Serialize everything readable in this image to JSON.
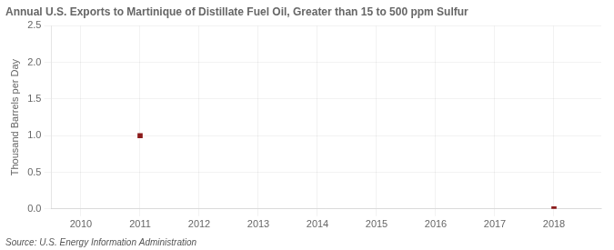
{
  "chart_data": {
    "type": "scatter",
    "title": "Annual U.S. Exports to Martinique of Distillate Fuel Oil, Greater than 15 to 500 ppm Sulfur",
    "ylabel": "Thousand Barrels per Day",
    "annotations": [
      "Source: U.S. Energy Information Administration"
    ],
    "x": [
      2011,
      2018
    ],
    "values": [
      1.0,
      0.0
    ],
    "color": "#8B1A1A",
    "marker": "square",
    "xlim": [
      2009.5,
      2018.8
    ],
    "xticks": [
      2010,
      2011,
      2012,
      2013,
      2014,
      2015,
      2016,
      2017,
      2018
    ],
    "ylim": [
      0.0,
      2.5
    ],
    "yticks": [
      {
        "value": 0.0,
        "label": "0.0"
      },
      0.5,
      {
        "value": 1.0,
        "label": "1.0"
      },
      1.5,
      {
        "value": 2.0,
        "label": "2.0"
      },
      2.5
    ],
    "grid": true
  }
}
